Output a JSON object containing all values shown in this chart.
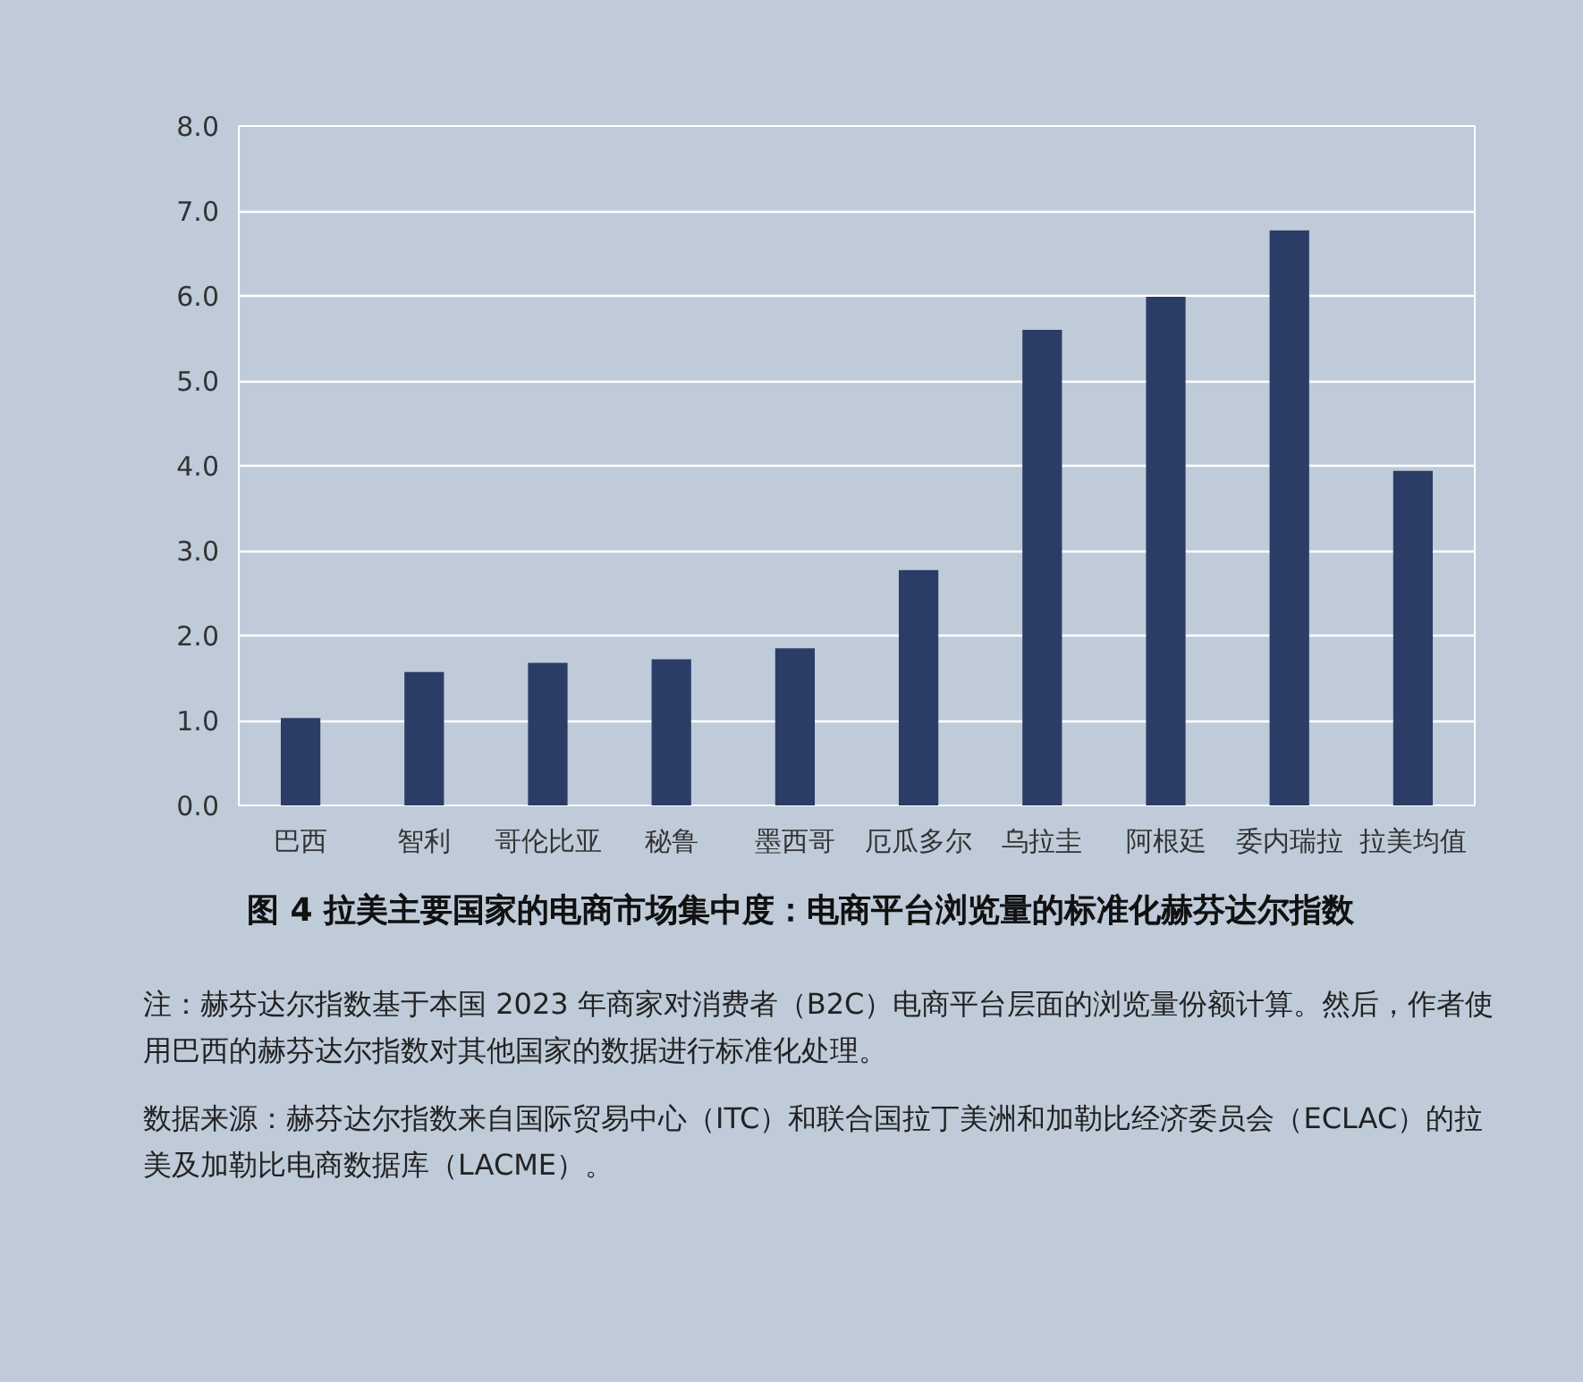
{
  "chart_data": {
    "type": "bar",
    "title": "图 4 拉美主要国家的电商市场集中度：电商平台浏览量的标准化赫芬达尔指数",
    "categories": [
      "巴西",
      "智利",
      "哥伦比亚",
      "秘鲁",
      "墨西哥",
      "厄瓜多尔",
      "乌拉圭",
      "阿根廷",
      "委内瑞拉",
      "拉美均值"
    ],
    "values": [
      1.03,
      1.57,
      1.68,
      1.72,
      1.85,
      2.77,
      5.6,
      5.99,
      6.77,
      3.94
    ],
    "color": "#2b3d66",
    "ylim": [
      0,
      8
    ],
    "yticks": [
      {
        "value": 0,
        "label": "0.0"
      },
      {
        "value": 1,
        "label": "1.0"
      },
      {
        "value": 2,
        "label": "2.0"
      },
      {
        "value": 3,
        "label": "3.0"
      },
      {
        "value": 4,
        "label": "4.0"
      },
      {
        "value": 5,
        "label": "5.0"
      },
      {
        "value": 6,
        "label": "6.0"
      },
      {
        "value": 7,
        "label": "7.0"
      },
      {
        "value": 8,
        "label": "8.0"
      }
    ],
    "grid": "y",
    "annotations": [
      "注：赫芬达尔指数基于本国 2023 年商家对消费者（B2C）电商平台层面的浏览量份额计算。然后，作者使用巴西的赫芬达尔指数对其他国家的数据进行标准化处理。",
      "数据来源：赫芬达尔指数来自国际贸易中心（ITC）和联合国拉丁美洲和加勒比经济委员会（ECLAC）的拉美及加勒比电商数据库（LACME）。"
    ]
  }
}
